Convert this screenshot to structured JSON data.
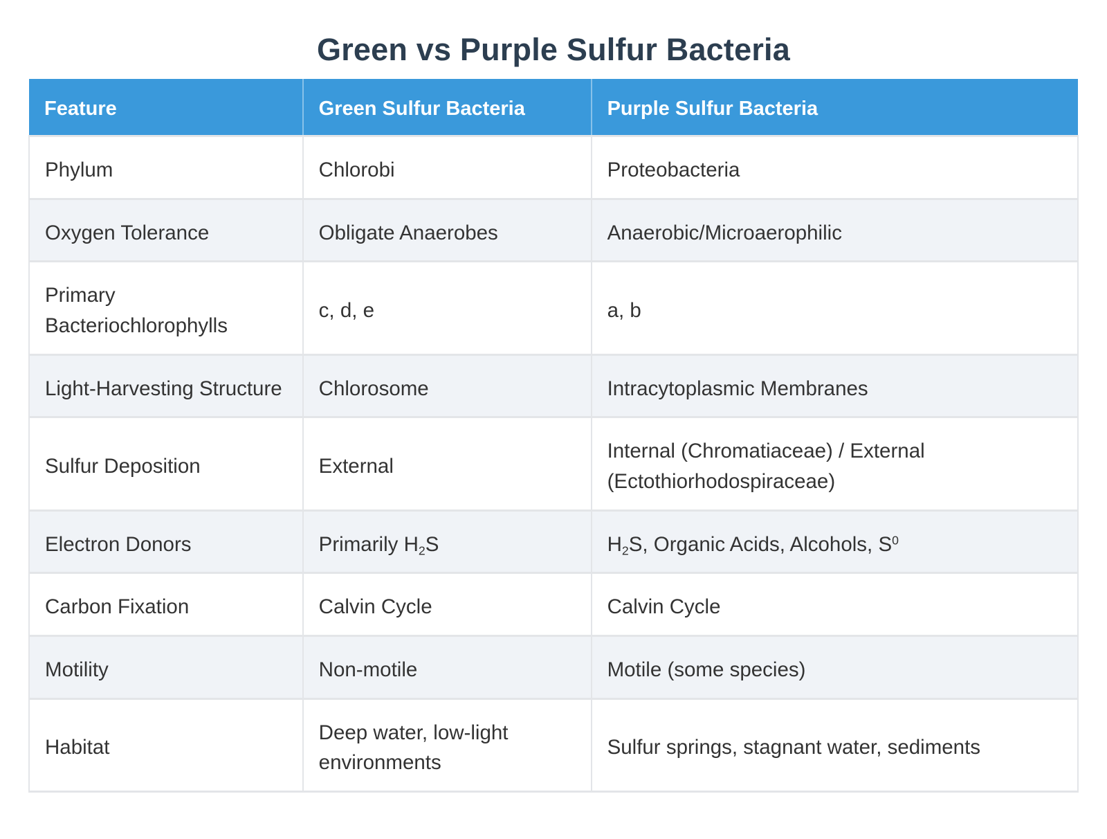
{
  "page": {
    "title": "Green vs Purple Sulfur Bacteria"
  },
  "colors": {
    "header_bg": "#3a99db",
    "header_text": "#ffffff",
    "row_bg": "#ffffff",
    "row_alt_bg": "#f0f3f7",
    "border": "#e3e5e8",
    "title_text": "#2c3e50",
    "body_text": "#333333"
  },
  "table": {
    "columns": [
      "Feature",
      "Green Sulfur Bacteria",
      "Purple Sulfur Bacteria"
    ],
    "rows": [
      {
        "feature": [
          {
            "t": "Phylum"
          }
        ],
        "green": [
          {
            "t": "Chlorobi"
          }
        ],
        "purple": [
          {
            "t": "Proteobacteria"
          }
        ]
      },
      {
        "feature": [
          {
            "t": "Oxygen Tolerance"
          }
        ],
        "green": [
          {
            "t": "Obligate Anaerobes"
          }
        ],
        "purple": [
          {
            "t": "Anaerobic/Microaerophilic"
          }
        ]
      },
      {
        "feature": [
          {
            "t": "Primary Bacteriochlorophylls"
          }
        ],
        "green": [
          {
            "t": "c, d, e"
          }
        ],
        "purple": [
          {
            "t": "a, b"
          }
        ]
      },
      {
        "feature": [
          {
            "t": "Light-Harvesting Structure"
          }
        ],
        "green": [
          {
            "t": "Chlorosome"
          }
        ],
        "purple": [
          {
            "t": "Intracytoplasmic Membranes"
          }
        ]
      },
      {
        "feature": [
          {
            "t": "Sulfur Deposition"
          }
        ],
        "green": [
          {
            "t": "External"
          }
        ],
        "purple": [
          {
            "t": "Internal (Chromatiaceae) / External (Ectothiorhodospiraceae)"
          }
        ]
      },
      {
        "feature": [
          {
            "t": "Electron Donors"
          }
        ],
        "green": [
          {
            "t": "Primarily H"
          },
          {
            "t": "2",
            "s": "sub"
          },
          {
            "t": "S"
          }
        ],
        "purple": [
          {
            "t": "H"
          },
          {
            "t": "2",
            "s": "sub"
          },
          {
            "t": "S, Organic Acids, Alcohols, S"
          },
          {
            "t": "0",
            "s": "sup"
          }
        ]
      },
      {
        "feature": [
          {
            "t": "Carbon Fixation"
          }
        ],
        "green": [
          {
            "t": "Calvin Cycle"
          }
        ],
        "purple": [
          {
            "t": "Calvin Cycle"
          }
        ]
      },
      {
        "feature": [
          {
            "t": "Motility"
          }
        ],
        "green": [
          {
            "t": "Non-motile"
          }
        ],
        "purple": [
          {
            "t": "Motile (some species)"
          }
        ]
      },
      {
        "feature": [
          {
            "t": "Habitat"
          }
        ],
        "green": [
          {
            "t": "Deep water, low-light environments"
          }
        ],
        "purple": [
          {
            "t": "Sulfur springs, stagnant water, sediments"
          }
        ]
      }
    ]
  }
}
